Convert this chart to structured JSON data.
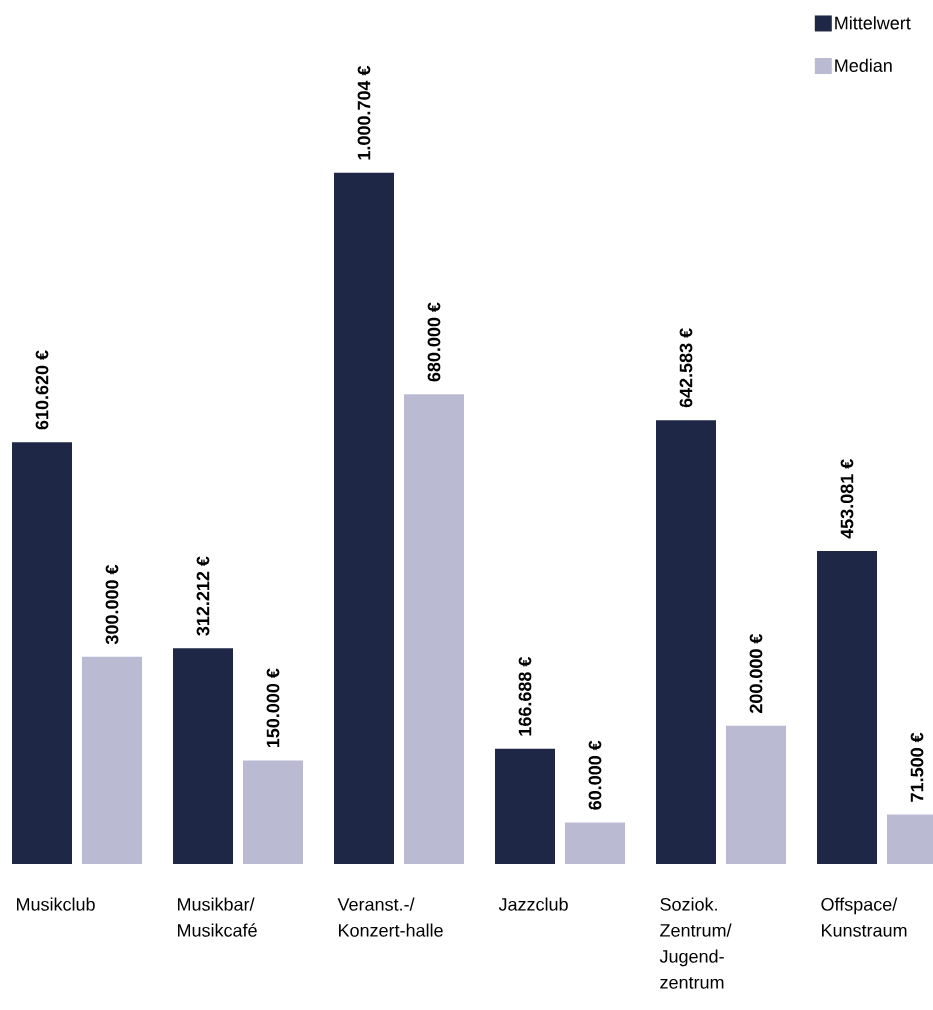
{
  "chart_data": {
    "type": "bar",
    "legend": "top right",
    "categories": [
      "Musikclub",
      "Musikbar/ Musikcafé",
      "Veranst.-/ Konzert-halle",
      "Jazzclub",
      "Soziok. Zentrum/ Jugend-zentrum",
      "Offspace/ Kunstraum"
    ],
    "series": [
      {
        "name": "Mittelwert",
        "color": "#1e2745",
        "values": [
          610620,
          312212,
          1000704,
          166688,
          642583,
          453081
        ],
        "value_labels": [
          "610.620 €",
          "312.212 €",
          "1.000.704 €",
          "166.688 €",
          "642.583 €",
          "453.081 €"
        ]
      },
      {
        "name": "Median",
        "color": "#babbd3",
        "values": [
          300000,
          150000,
          680000,
          60000,
          200000,
          71500
        ],
        "value_labels": [
          "300.000 €",
          "150.000 €",
          "680.000 €",
          "60.000 €",
          "200.000 €",
          "71.500 €"
        ]
      }
    ]
  }
}
